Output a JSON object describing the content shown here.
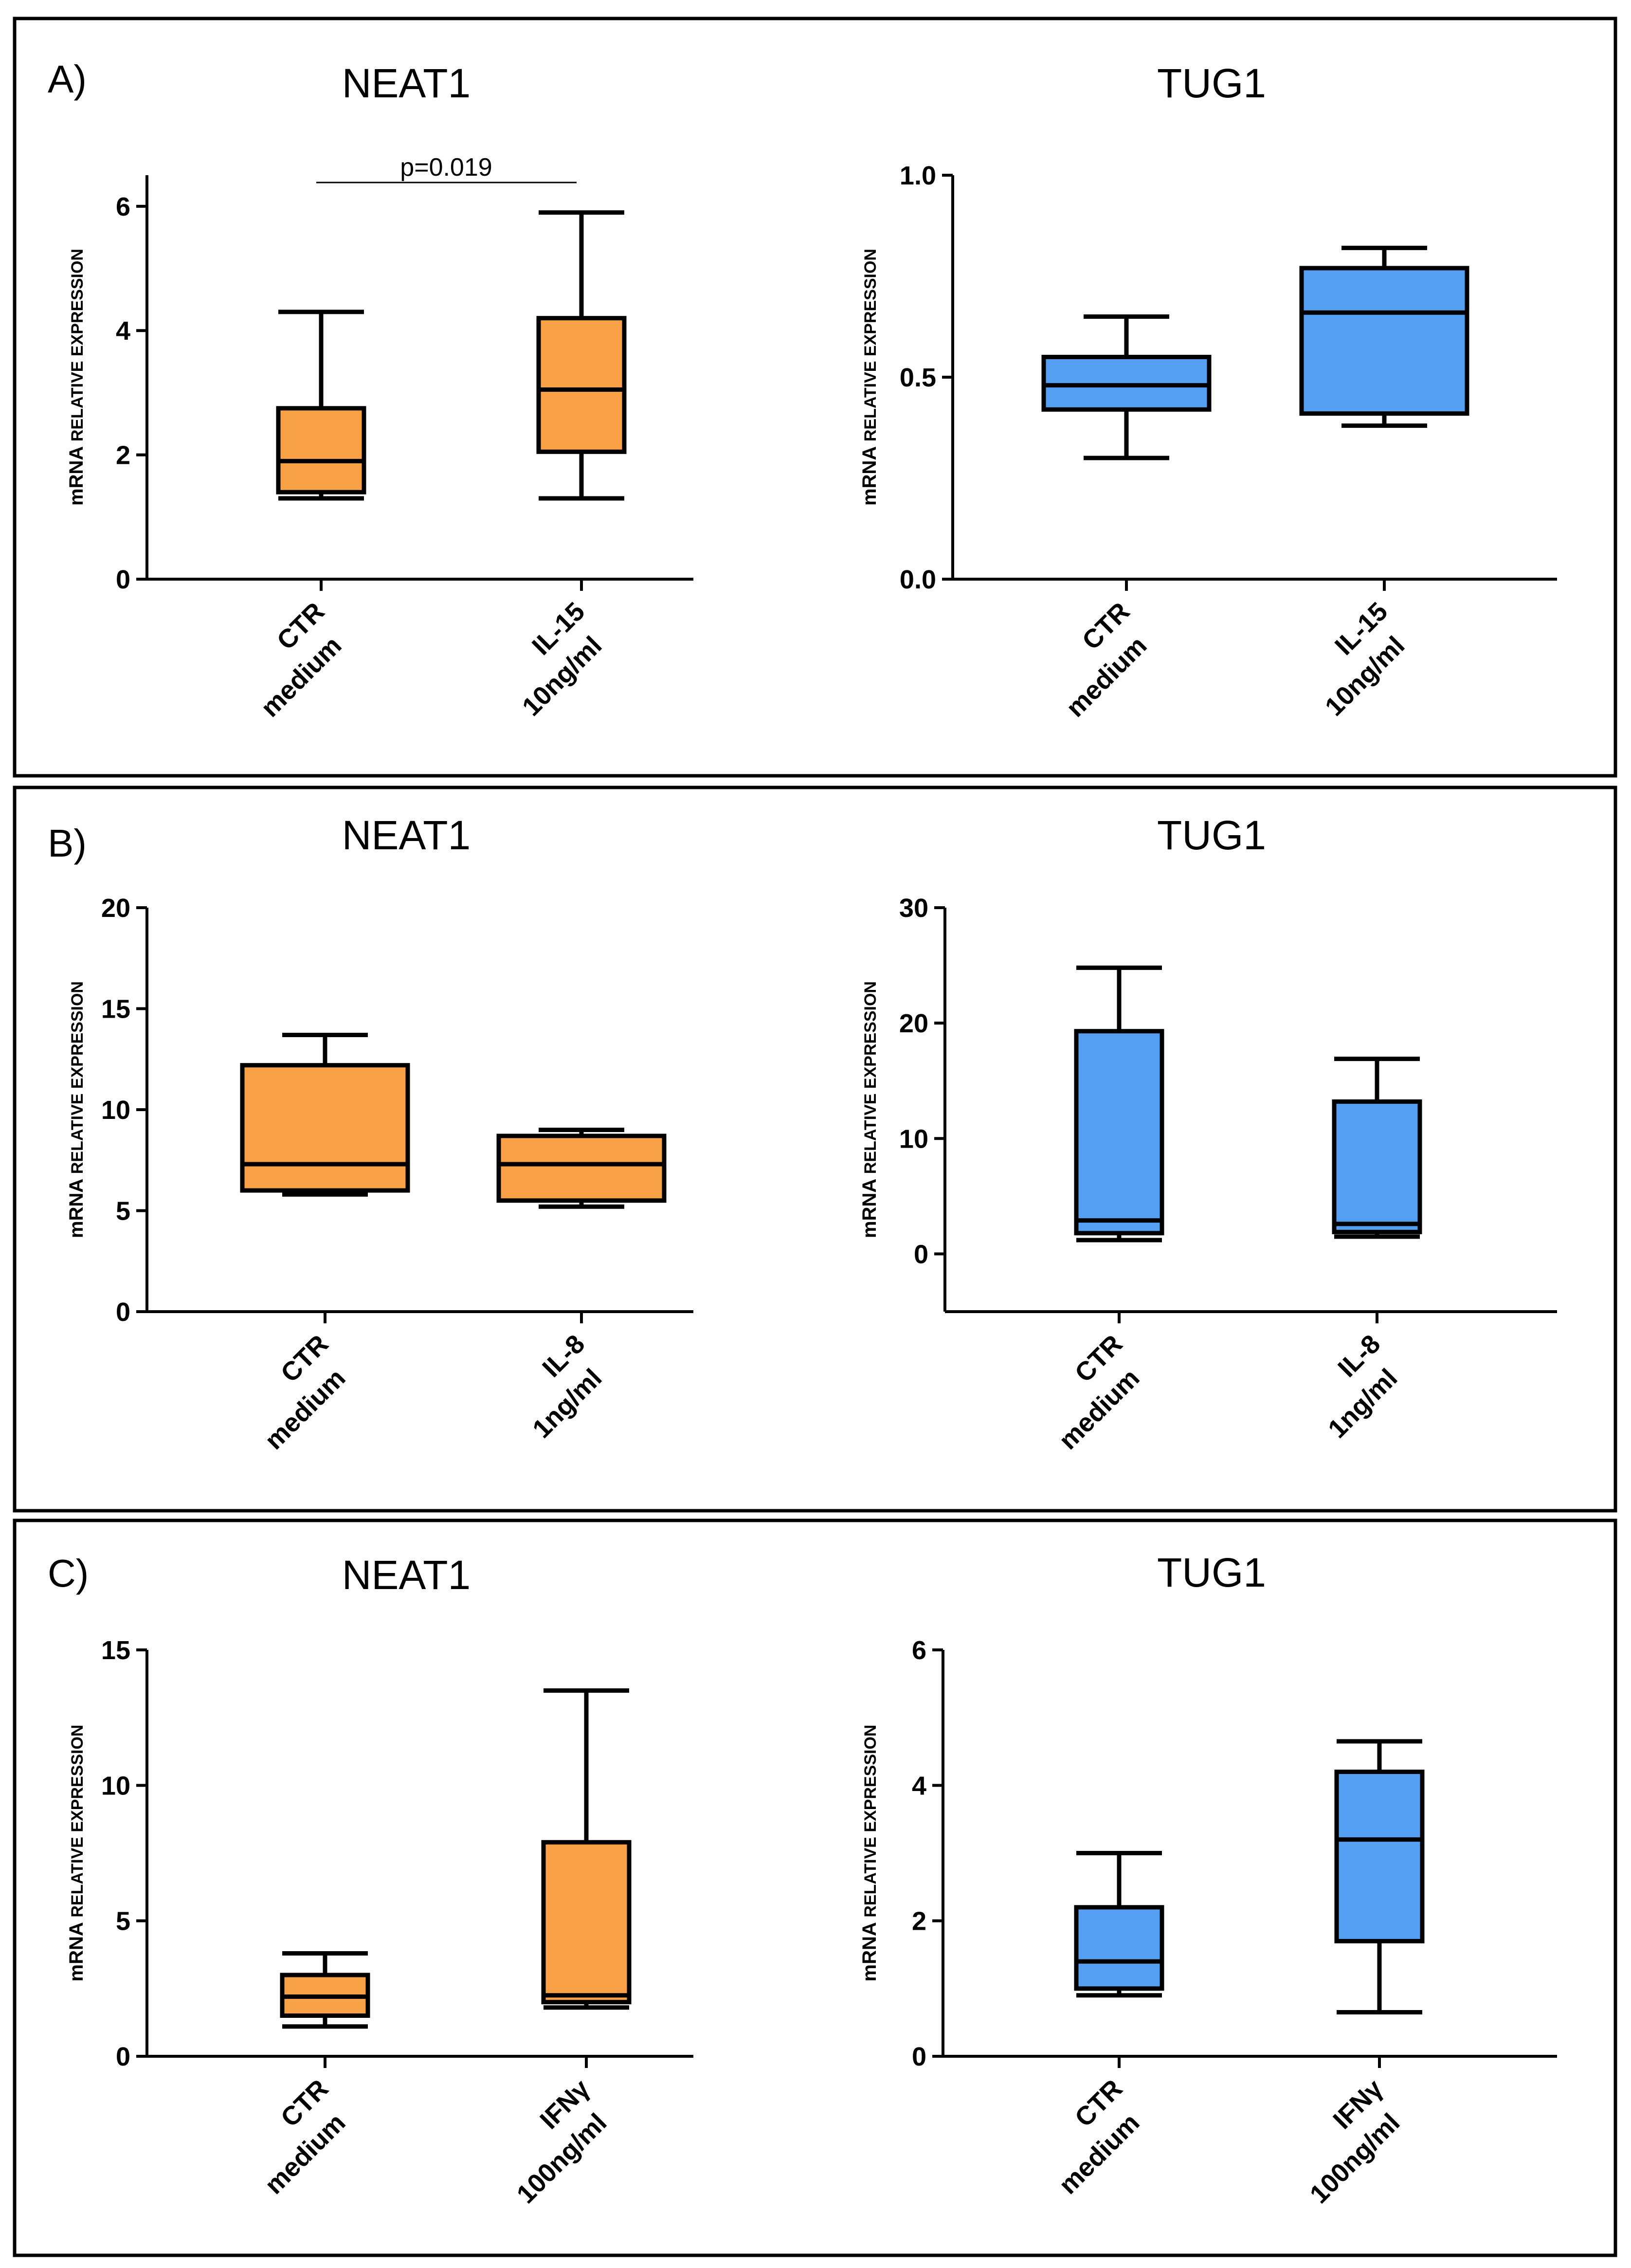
{
  "figure": {
    "panels": [
      {
        "letter": "A)"
      },
      {
        "letter": "B)"
      },
      {
        "letter": "C)"
      }
    ]
  },
  "colors": {
    "neat1_fill": "#F9A146",
    "tug1_fill": "#559FF2",
    "stroke": "#000000"
  },
  "chart_data": [
    {
      "id": "A-NEAT1",
      "panel": "A)",
      "type": "box",
      "title": "NEAT1",
      "ylabel_main": "mRNA",
      "ylabel_small": "RELATIVE EXPRESSION",
      "ylim": [
        0,
        6.5
      ],
      "yticks": [
        0,
        2,
        4,
        6
      ],
      "tick_decimals": 0,
      "fill": "#F9A146",
      "categories": [
        [
          "CTR",
          "medium"
        ],
        [
          "IL-15",
          "10ng/ml"
        ]
      ],
      "boxes": [
        {
          "min": 1.3,
          "q1": 1.4,
          "median": 1.9,
          "q3": 2.75,
          "max": 4.3
        },
        {
          "min": 1.3,
          "q1": 2.05,
          "median": 3.05,
          "q3": 4.2,
          "max": 5.9
        }
      ],
      "significance": {
        "label": "p=0.019",
        "y": 6.55
      }
    },
    {
      "id": "A-TUG1",
      "panel": "A)",
      "type": "box",
      "title": "TUG1",
      "ylabel_main": "mRNA",
      "ylabel_small": "RELATIVE EXPRESSION",
      "ylim": [
        0,
        1.0
      ],
      "yticks": [
        0.0,
        0.5,
        1.0
      ],
      "tick_decimals": 1,
      "fill": "#559FF2",
      "categories": [
        [
          "CTR",
          "medium"
        ],
        [
          "IL-15",
          "10ng/ml"
        ]
      ],
      "boxes": [
        {
          "min": 0.3,
          "q1": 0.42,
          "median": 0.48,
          "q3": 0.55,
          "max": 0.65
        },
        {
          "min": 0.38,
          "q1": 0.41,
          "median": 0.66,
          "q3": 0.77,
          "max": 0.82
        }
      ]
    },
    {
      "id": "B-NEAT1",
      "panel": "B)",
      "type": "box",
      "title": "NEAT1",
      "ylabel_main": "mRNA",
      "ylabel_small": "RELATIVE EXPRESSION",
      "ylim": [
        0,
        20
      ],
      "yticks": [
        0,
        5,
        10,
        15,
        20
      ],
      "tick_decimals": 0,
      "fill": "#F9A146",
      "categories": [
        [
          "CTR",
          "medium"
        ],
        [
          "IL-8",
          "1ng/ml"
        ]
      ],
      "boxes": [
        {
          "min": 5.8,
          "q1": 6.0,
          "median": 7.3,
          "q3": 12.2,
          "max": 13.7
        },
        {
          "min": 5.2,
          "q1": 5.5,
          "median": 7.3,
          "q3": 8.7,
          "max": 9.0
        }
      ]
    },
    {
      "id": "B-TUG1",
      "panel": "B)",
      "type": "box",
      "title": "TUG1",
      "ylabel_main": "mRNA",
      "ylabel_small": "RELATIVE EXPRESSION",
      "ylim": [
        -5,
        30
      ],
      "yticks": [
        0,
        10,
        20,
        30
      ],
      "tick_decimals": 0,
      "fill": "#559FF2",
      "categories": [
        [
          "CTR",
          "medium"
        ],
        [
          "IL-8",
          "1ng/ml"
        ]
      ],
      "boxes": [
        {
          "min": 1.2,
          "q1": 1.8,
          "median": 2.9,
          "q3": 19.3,
          "max": 24.8
        },
        {
          "min": 1.5,
          "q1": 1.9,
          "median": 2.6,
          "q3": 13.2,
          "max": 16.9
        }
      ]
    },
    {
      "id": "C-NEAT1",
      "panel": "C)",
      "type": "box",
      "title": "NEAT1",
      "ylabel_main": "mRNA",
      "ylabel_small": "RELATIVE EXPRESSION",
      "ylim": [
        0,
        15
      ],
      "yticks": [
        0,
        5,
        10,
        15
      ],
      "tick_decimals": 0,
      "fill": "#F9A146",
      "categories": [
        [
          "CTR",
          "medium"
        ],
        [
          "IFNγ",
          "100ng/ml"
        ]
      ],
      "boxes": [
        {
          "min": 1.1,
          "q1": 1.5,
          "median": 2.2,
          "q3": 3.0,
          "max": 3.8
        },
        {
          "min": 1.8,
          "q1": 2.0,
          "median": 2.25,
          "q3": 7.9,
          "max": 13.5
        }
      ]
    },
    {
      "id": "C-TUG1",
      "panel": "C)",
      "type": "box",
      "title": "TUG1",
      "ylabel_main": "mRNA",
      "ylabel_small": "RELATIVE EXPRESSION",
      "ylim": [
        0,
        6
      ],
      "yticks": [
        0,
        2,
        4,
        6
      ],
      "tick_decimals": 0,
      "fill": "#559FF2",
      "categories": [
        [
          "CTR",
          "medium"
        ],
        [
          "IFNγ",
          "100ng/ml"
        ]
      ],
      "boxes": [
        {
          "min": 0.9,
          "q1": 1.0,
          "median": 1.4,
          "q3": 2.2,
          "max": 3.0
        },
        {
          "min": 0.65,
          "q1": 1.7,
          "median": 3.2,
          "q3": 4.2,
          "max": 4.65
        }
      ]
    }
  ]
}
